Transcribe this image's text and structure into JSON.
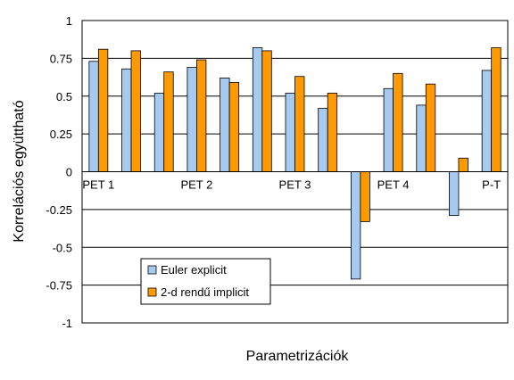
{
  "chart_data": {
    "type": "bar",
    "categories": [
      "PET 1",
      "",
      "",
      "PET 2",
      "",
      "",
      "PET 3",
      "",
      "",
      "PET 4",
      "",
      "",
      "P-T"
    ],
    "series": [
      {
        "name": "Euler explicit",
        "color": "#a6caf0",
        "values": [
          0.73,
          0.68,
          0.52,
          0.69,
          0.62,
          0.82,
          0.52,
          0.42,
          -0.71,
          0.55,
          0.44,
          -0.29,
          0.67
        ]
      },
      {
        "name": "2-d rendű implicit",
        "color": "#ff9900",
        "values": [
          0.81,
          0.8,
          0.66,
          0.74,
          0.59,
          0.8,
          0.63,
          0.52,
          -0.33,
          0.65,
          0.58,
          0.09,
          0.82
        ]
      }
    ],
    "y_ticks": [
      "1",
      "0.75",
      "0.5",
      "0.25",
      "0",
      "-0.25",
      "-0.5",
      "-0.75",
      "-1"
    ],
    "ylim": [
      -1,
      1
    ],
    "xlabel": "Parametrizációk",
    "ylabel": "Korrelációs együttható",
    "legend_position": "bottom-left",
    "grid": true
  }
}
